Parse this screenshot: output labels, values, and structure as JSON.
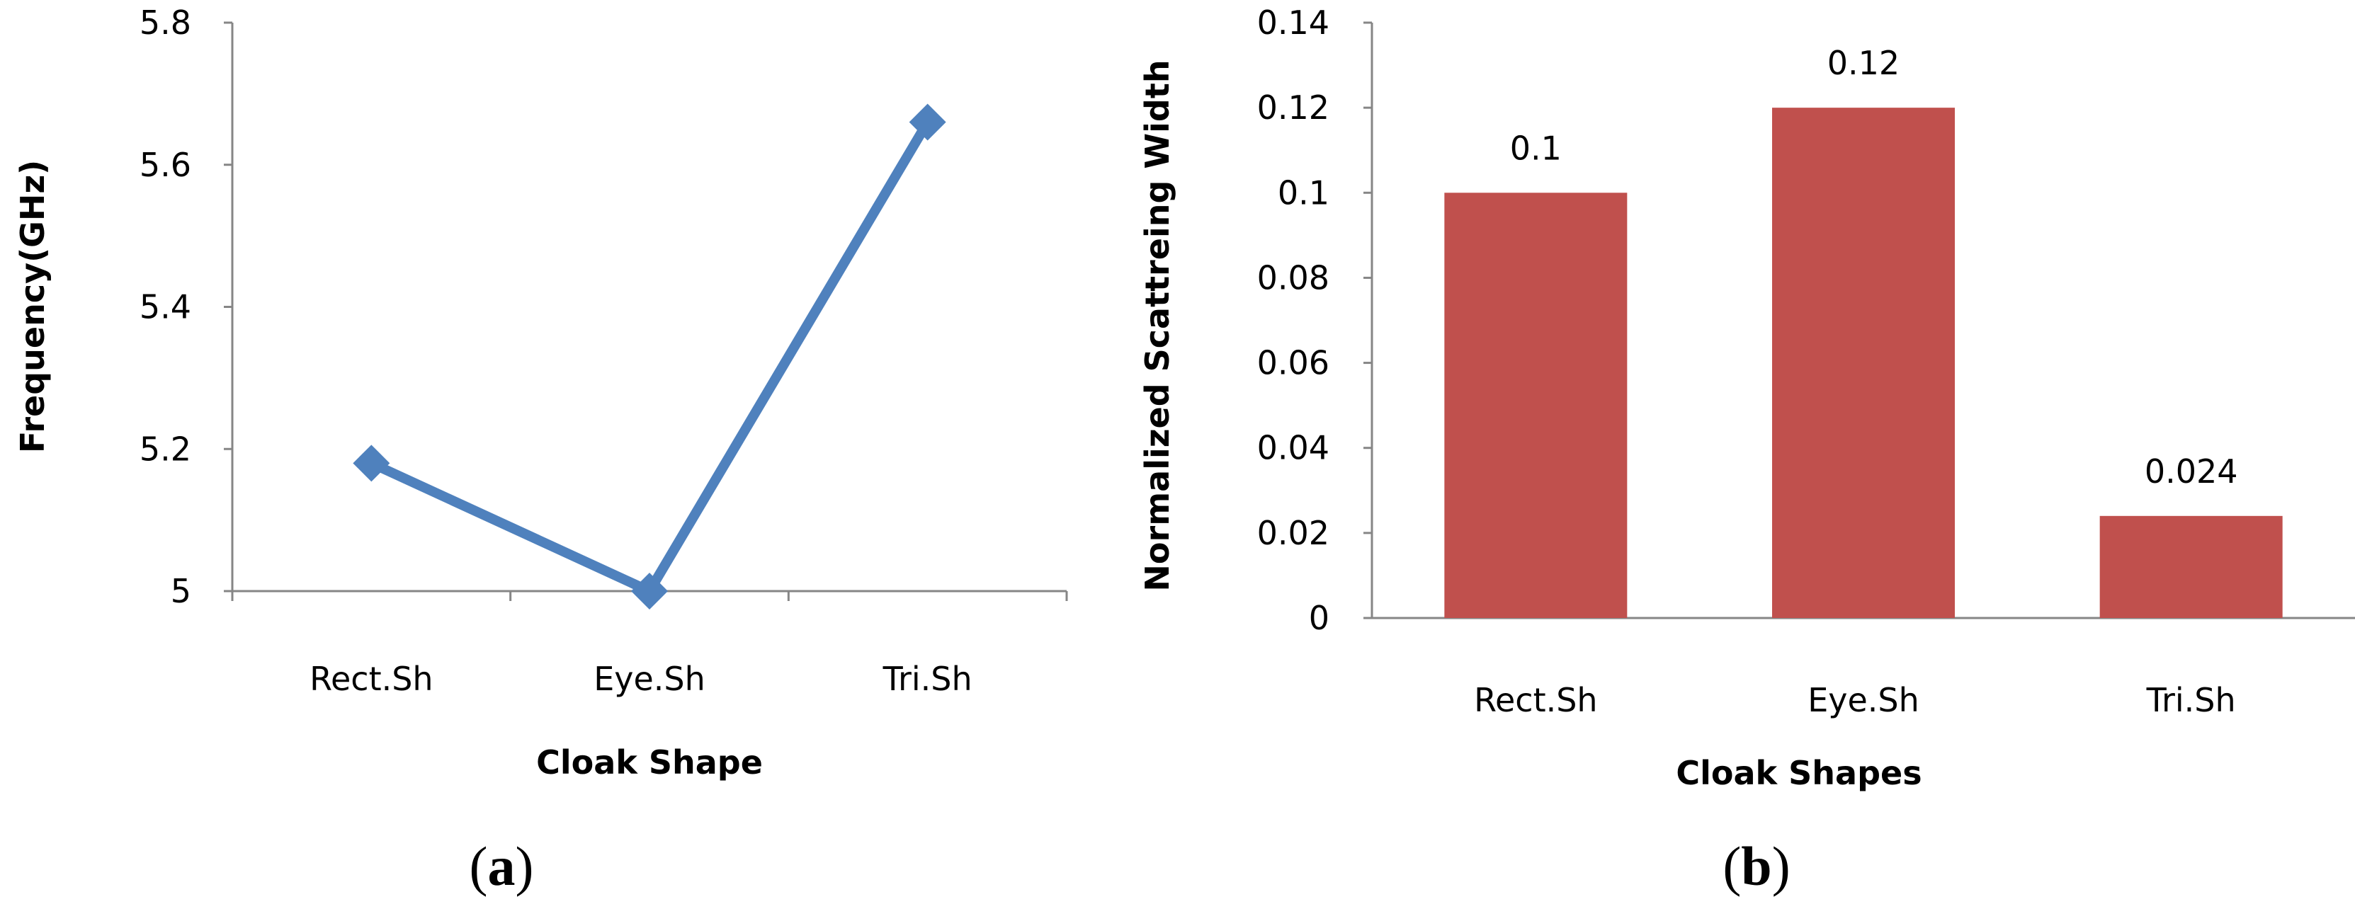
{
  "chart_data": [
    {
      "type": "line",
      "panel_label": {
        "open": "(",
        "letter": "a",
        "close": ")"
      },
      "xlabel": "Cloak Shape",
      "ylabel": "Frequency(GHz)",
      "categories": [
        "Rect.Sh",
        "Eye.Sh",
        "Tri.Sh"
      ],
      "series": [
        {
          "values": [
            5.18,
            5.0,
            5.66
          ],
          "color": "#4f81bd"
        }
      ],
      "ylim": [
        5,
        5.8
      ],
      "yticks": [
        "5",
        "5.2",
        "5.4",
        "5.6",
        "5.8"
      ],
      "marker": "diamond",
      "grid": false
    },
    {
      "type": "bar",
      "panel_label": {
        "open": "(",
        "letter": "b",
        "close": ")"
      },
      "xlabel": "Cloak Shapes",
      "ylabel": "Normalized Scattreing Width",
      "categories": [
        "Rect.Sh",
        "Eye.Sh",
        "Tri.Sh"
      ],
      "values": [
        0.1,
        0.12,
        0.024
      ],
      "data_labels": [
        "0.1",
        "0.12",
        "0.024"
      ],
      "color": "#c0504d",
      "ylim": [
        0,
        0.14
      ],
      "yticks": [
        "0",
        "0.02",
        "0.04",
        "0.06",
        "0.08",
        "0.1",
        "0.12",
        "0.14"
      ],
      "grid": false
    }
  ]
}
